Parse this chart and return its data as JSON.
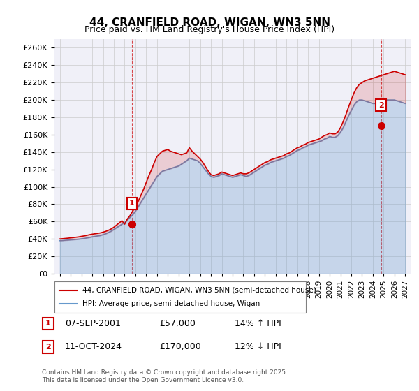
{
  "title": "44, CRANFIELD ROAD, WIGAN, WN3 5NN",
  "subtitle": "Price paid vs. HM Land Registry's House Price Index (HPI)",
  "legend_line1": "44, CRANFIELD ROAD, WIGAN, WN3 5NN (semi-detached house)",
  "legend_line2": "HPI: Average price, semi-detached house, Wigan",
  "footer": "Contains HM Land Registry data © Crown copyright and database right 2025.\nThis data is licensed under the Open Government Licence v3.0.",
  "annotation1_label": "1",
  "annotation1_date": "07-SEP-2001",
  "annotation1_price": "£57,000",
  "annotation1_hpi": "14% ↑ HPI",
  "annotation2_label": "2",
  "annotation2_date": "11-OCT-2024",
  "annotation2_price": "£170,000",
  "annotation2_hpi": "12% ↓ HPI",
  "red_color": "#cc0000",
  "blue_color": "#6699cc",
  "background_color": "#ffffff",
  "grid_color": "#cccccc",
  "ylim": [
    0,
    270000
  ],
  "yticks": [
    0,
    20000,
    40000,
    60000,
    80000,
    100000,
    120000,
    140000,
    160000,
    180000,
    200000,
    220000,
    240000,
    260000
  ],
  "xlim_start": 1994.5,
  "xlim_end": 2027.5,
  "hpi_x": [
    1995,
    1995.25,
    1995.5,
    1995.75,
    1996,
    1996.25,
    1996.5,
    1996.75,
    1997,
    1997.25,
    1997.5,
    1997.75,
    1998,
    1998.25,
    1998.5,
    1998.75,
    1999,
    1999.25,
    1999.5,
    1999.75,
    2000,
    2000.25,
    2000.5,
    2000.75,
    2001,
    2001.25,
    2001.5,
    2001.75,
    2002,
    2002.25,
    2002.5,
    2002.75,
    2003,
    2003.25,
    2003.5,
    2003.75,
    2004,
    2004.25,
    2004.5,
    2004.75,
    2005,
    2005.25,
    2005.5,
    2005.75,
    2006,
    2006.25,
    2006.5,
    2006.75,
    2007,
    2007.25,
    2007.5,
    2007.75,
    2008,
    2008.25,
    2008.5,
    2008.75,
    2009,
    2009.25,
    2009.5,
    2009.75,
    2010,
    2010.25,
    2010.5,
    2010.75,
    2011,
    2011.25,
    2011.5,
    2011.75,
    2012,
    2012.25,
    2012.5,
    2012.75,
    2013,
    2013.25,
    2013.5,
    2013.75,
    2014,
    2014.25,
    2014.5,
    2014.75,
    2015,
    2015.25,
    2015.5,
    2015.75,
    2016,
    2016.25,
    2016.5,
    2016.75,
    2017,
    2017.25,
    2017.5,
    2017.75,
    2018,
    2018.25,
    2018.5,
    2018.75,
    2019,
    2019.25,
    2019.5,
    2019.75,
    2020,
    2020.25,
    2020.5,
    2020.75,
    2021,
    2021.25,
    2021.5,
    2021.75,
    2022,
    2022.25,
    2022.5,
    2022.75,
    2023,
    2023.25,
    2023.5,
    2023.75,
    2024,
    2024.25,
    2024.5,
    2024.75,
    2025,
    2025.25,
    2025.5,
    2025.75,
    2026,
    2026.25,
    2026.5,
    2026.75,
    2027
  ],
  "hpi_y": [
    38000,
    38200,
    38500,
    38700,
    39000,
    39200,
    39500,
    39800,
    40200,
    40600,
    41200,
    41800,
    42500,
    43000,
    43500,
    44000,
    45000,
    46000,
    47500,
    49000,
    51000,
    53000,
    55000,
    57000,
    59000,
    62000,
    65000,
    68000,
    72000,
    77000,
    82000,
    87000,
    92000,
    97000,
    102000,
    107000,
    112000,
    115000,
    118000,
    119000,
    120000,
    121000,
    122000,
    123000,
    124000,
    126000,
    128000,
    130000,
    133000,
    132000,
    131000,
    130000,
    127000,
    123000,
    119000,
    115000,
    112000,
    111000,
    112000,
    113000,
    115000,
    114000,
    113000,
    112000,
    111000,
    112000,
    113000,
    114000,
    113000,
    112000,
    113000,
    115000,
    117000,
    119000,
    121000,
    123000,
    125000,
    126000,
    128000,
    129000,
    130000,
    131000,
    132000,
    133000,
    135000,
    136000,
    138000,
    140000,
    142000,
    143000,
    145000,
    146000,
    148000,
    149000,
    150000,
    151000,
    152000,
    153000,
    155000,
    156000,
    158000,
    157000,
    157000,
    159000,
    163000,
    168000,
    175000,
    182000,
    188000,
    194000,
    198000,
    200000,
    200000,
    199000,
    198000,
    197000,
    196000,
    196000,
    197000,
    198000,
    199000,
    200000,
    200000,
    200000,
    200000,
    199000,
    198000,
    197000,
    196000
  ],
  "red_x": [
    1995,
    1995.25,
    1995.5,
    1995.75,
    1996,
    1996.25,
    1996.5,
    1996.75,
    1997,
    1997.25,
    1997.5,
    1997.75,
    1998,
    1998.25,
    1998.5,
    1998.75,
    1999,
    1999.25,
    1999.5,
    1999.75,
    2000,
    2000.25,
    2000.5,
    2000.75,
    2001,
    2001.25,
    2001.5,
    2001.75,
    2002,
    2002.25,
    2002.5,
    2002.75,
    2003,
    2003.25,
    2003.5,
    2003.75,
    2004,
    2004.25,
    2004.5,
    2004.75,
    2005,
    2005.25,
    2005.5,
    2005.75,
    2006,
    2006.25,
    2006.5,
    2006.75,
    2007,
    2007.25,
    2007.5,
    2007.75,
    2008,
    2008.25,
    2008.5,
    2008.75,
    2009,
    2009.25,
    2009.5,
    2009.75,
    2010,
    2010.25,
    2010.5,
    2010.75,
    2011,
    2011.25,
    2011.5,
    2011.75,
    2012,
    2012.25,
    2012.5,
    2012.75,
    2013,
    2013.25,
    2013.5,
    2013.75,
    2014,
    2014.25,
    2014.5,
    2014.75,
    2015,
    2015.25,
    2015.5,
    2015.75,
    2016,
    2016.25,
    2016.5,
    2016.75,
    2017,
    2017.25,
    2017.5,
    2017.75,
    2018,
    2018.25,
    2018.5,
    2018.75,
    2019,
    2019.25,
    2019.5,
    2019.75,
    2020,
    2020.25,
    2020.5,
    2020.75,
    2021,
    2021.25,
    2021.5,
    2021.75,
    2022,
    2022.25,
    2022.5,
    2022.75,
    2023,
    2023.25,
    2023.5,
    2023.75,
    2024,
    2024.25,
    2024.5,
    2024.75,
    2025,
    2025.25,
    2025.5,
    2025.75,
    2026,
    2026.25,
    2026.5,
    2026.75,
    2027
  ],
  "red_y": [
    40000,
    40300,
    40600,
    40900,
    41300,
    41600,
    42000,
    42400,
    43000,
    43500,
    44200,
    44900,
    45500,
    46000,
    46500,
    47000,
    47800,
    48800,
    50000,
    51500,
    53500,
    56000,
    58500,
    61000,
    57000,
    63000,
    67000,
    72000,
    77000,
    83000,
    90000,
    97000,
    105000,
    113000,
    120000,
    128000,
    135000,
    138000,
    141000,
    142000,
    143000,
    141000,
    140000,
    139000,
    138000,
    137000,
    138000,
    139000,
    145000,
    141000,
    138000,
    135000,
    132000,
    128000,
    123000,
    118000,
    114000,
    113000,
    114000,
    115000,
    117000,
    116000,
    115000,
    114000,
    113000,
    114000,
    115000,
    116000,
    115000,
    115000,
    116000,
    118000,
    120000,
    122000,
    124000,
    126000,
    128000,
    129000,
    131000,
    132000,
    133000,
    134000,
    135000,
    136000,
    138000,
    139000,
    141000,
    143000,
    145000,
    146000,
    148000,
    149000,
    151000,
    152000,
    153000,
    154000,
    155000,
    157000,
    159000,
    160000,
    162000,
    161000,
    161000,
    163000,
    168000,
    175000,
    183000,
    192000,
    200000,
    208000,
    214000,
    218000,
    220000,
    222000,
    223000,
    224000,
    225000,
    226000,
    227000,
    228000,
    229000,
    230000,
    231000,
    232000,
    233000,
    232000,
    231000,
    230000,
    229000
  ],
  "marker1_x": 2001.67,
  "marker1_y": 57000,
  "marker2_x": 2024.75,
  "marker2_y": 170000,
  "vline1_x": 2001.67,
  "vline2_x": 2024.75
}
